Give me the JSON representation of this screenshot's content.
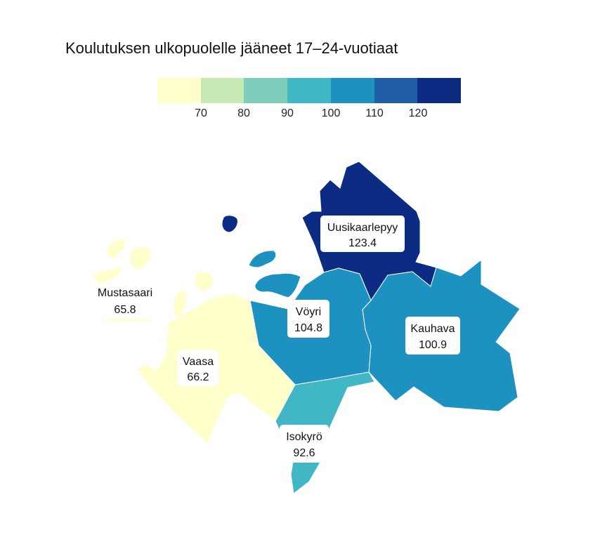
{
  "title": "Koulutuksen ulkopuolelle jääneet 17–24-vuotiaat",
  "legend": {
    "colors": [
      "#ffffcc",
      "#c7e9b4",
      "#7fcdbb",
      "#41b6c4",
      "#1d91c0",
      "#225ea8",
      "#0c2c84"
    ],
    "ticks": [
      "70",
      "80",
      "90",
      "100",
      "110",
      "120"
    ]
  },
  "chart_data": {
    "type": "choropleth",
    "title": "Koulutuksen ulkopuolelle jääneet 17–24-vuotiaat",
    "color_scale_breaks": [
      70,
      80,
      90,
      100,
      110,
      120
    ],
    "regions": [
      {
        "name": "Uusikaarlepyy",
        "value_label": "123.4",
        "value": 123.4,
        "color": "#0c2c84"
      },
      {
        "name": "Kauhava",
        "value_label": "100.9",
        "value": 100.9,
        "color": "#1d91c0"
      },
      {
        "name": "Vöyri",
        "value_label": "104.8",
        "value": 104.8,
        "color": "#1d91c0"
      },
      {
        "name": "Isokyrö",
        "value_label": "92.6",
        "value": 92.6,
        "color": "#41b6c4"
      },
      {
        "name": "Vaasa",
        "value_label": "66.2",
        "value": 66.2,
        "color": "#ffffcc"
      },
      {
        "name": "Mustasaari",
        "value_label": "65.8",
        "value": 65.8,
        "color": "#ffffcc"
      }
    ]
  }
}
